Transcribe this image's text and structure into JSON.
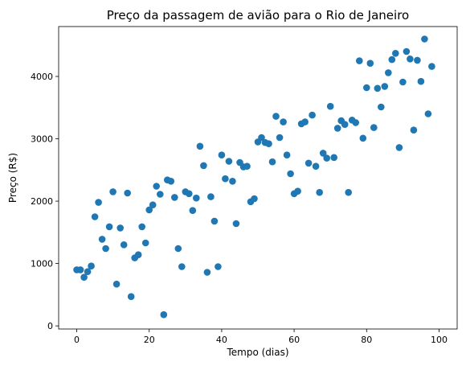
{
  "chart_data": {
    "type": "scatter",
    "title": "Preço da passagem de avião para o Rio de Janeiro",
    "xlabel": "Tempo (dias)",
    "ylabel": "Preço (R$)",
    "xlim": [
      -5,
      105
    ],
    "ylim": [
      -50,
      4800
    ],
    "xticks": [
      0,
      20,
      40,
      60,
      80,
      100
    ],
    "yticks": [
      0,
      1000,
      2000,
      3000,
      4000
    ],
    "grid": false,
    "marker_color": "#1f77b4",
    "points": [
      [
        0,
        900
      ],
      [
        1,
        900
      ],
      [
        2,
        780
      ],
      [
        3,
        870
      ],
      [
        4,
        960
      ],
      [
        5,
        1750
      ],
      [
        6,
        1980
      ],
      [
        7,
        1390
      ],
      [
        8,
        1240
      ],
      [
        9,
        1590
      ],
      [
        10,
        2150
      ],
      [
        11,
        670
      ],
      [
        12,
        1570
      ],
      [
        13,
        1300
      ],
      [
        14,
        2130
      ],
      [
        15,
        470
      ],
      [
        16,
        1090
      ],
      [
        17,
        1140
      ],
      [
        18,
        1590
      ],
      [
        19,
        1330
      ],
      [
        20,
        1860
      ],
      [
        21,
        1940
      ],
      [
        22,
        2240
      ],
      [
        23,
        2110
      ],
      [
        24,
        180
      ],
      [
        25,
        2340
      ],
      [
        26,
        2320
      ],
      [
        27,
        2060
      ],
      [
        28,
        1240
      ],
      [
        29,
        950
      ],
      [
        30,
        2150
      ],
      [
        31,
        2120
      ],
      [
        32,
        1850
      ],
      [
        33,
        2050
      ],
      [
        34,
        2880
      ],
      [
        35,
        2570
      ],
      [
        36,
        860
      ],
      [
        37,
        2070
      ],
      [
        38,
        1680
      ],
      [
        39,
        950
      ],
      [
        40,
        2740
      ],
      [
        41,
        2360
      ],
      [
        42,
        2640
      ],
      [
        43,
        2320
      ],
      [
        44,
        1640
      ],
      [
        45,
        2620
      ],
      [
        46,
        2550
      ],
      [
        47,
        2560
      ],
      [
        48,
        1990
      ],
      [
        49,
        2040
      ],
      [
        50,
        2950
      ],
      [
        51,
        3020
      ],
      [
        52,
        2940
      ],
      [
        53,
        2920
      ],
      [
        54,
        2630
      ],
      [
        55,
        3360
      ],
      [
        56,
        3020
      ],
      [
        57,
        3270
      ],
      [
        58,
        2740
      ],
      [
        59,
        2440
      ],
      [
        60,
        2120
      ],
      [
        61,
        2160
      ],
      [
        62,
        3240
      ],
      [
        63,
        3270
      ],
      [
        64,
        2610
      ],
      [
        65,
        3380
      ],
      [
        66,
        2560
      ],
      [
        67,
        2140
      ],
      [
        68,
        2770
      ],
      [
        69,
        2690
      ],
      [
        70,
        3520
      ],
      [
        71,
        2700
      ],
      [
        72,
        3170
      ],
      [
        73,
        3290
      ],
      [
        74,
        3230
      ],
      [
        75,
        2140
      ],
      [
        76,
        3300
      ],
      [
        77,
        3260
      ],
      [
        78,
        4250
      ],
      [
        79,
        3010
      ],
      [
        80,
        3820
      ],
      [
        81,
        4210
      ],
      [
        82,
        3180
      ],
      [
        83,
        3810
      ],
      [
        84,
        3510
      ],
      [
        85,
        3840
      ],
      [
        86,
        4060
      ],
      [
        87,
        4270
      ],
      [
        88,
        4370
      ],
      [
        89,
        2860
      ],
      [
        90,
        3910
      ],
      [
        91,
        4400
      ],
      [
        92,
        4280
      ],
      [
        93,
        3140
      ],
      [
        94,
        4260
      ],
      [
        95,
        3920
      ],
      [
        96,
        4600
      ],
      [
        97,
        3400
      ],
      [
        98,
        4160
      ]
    ]
  }
}
